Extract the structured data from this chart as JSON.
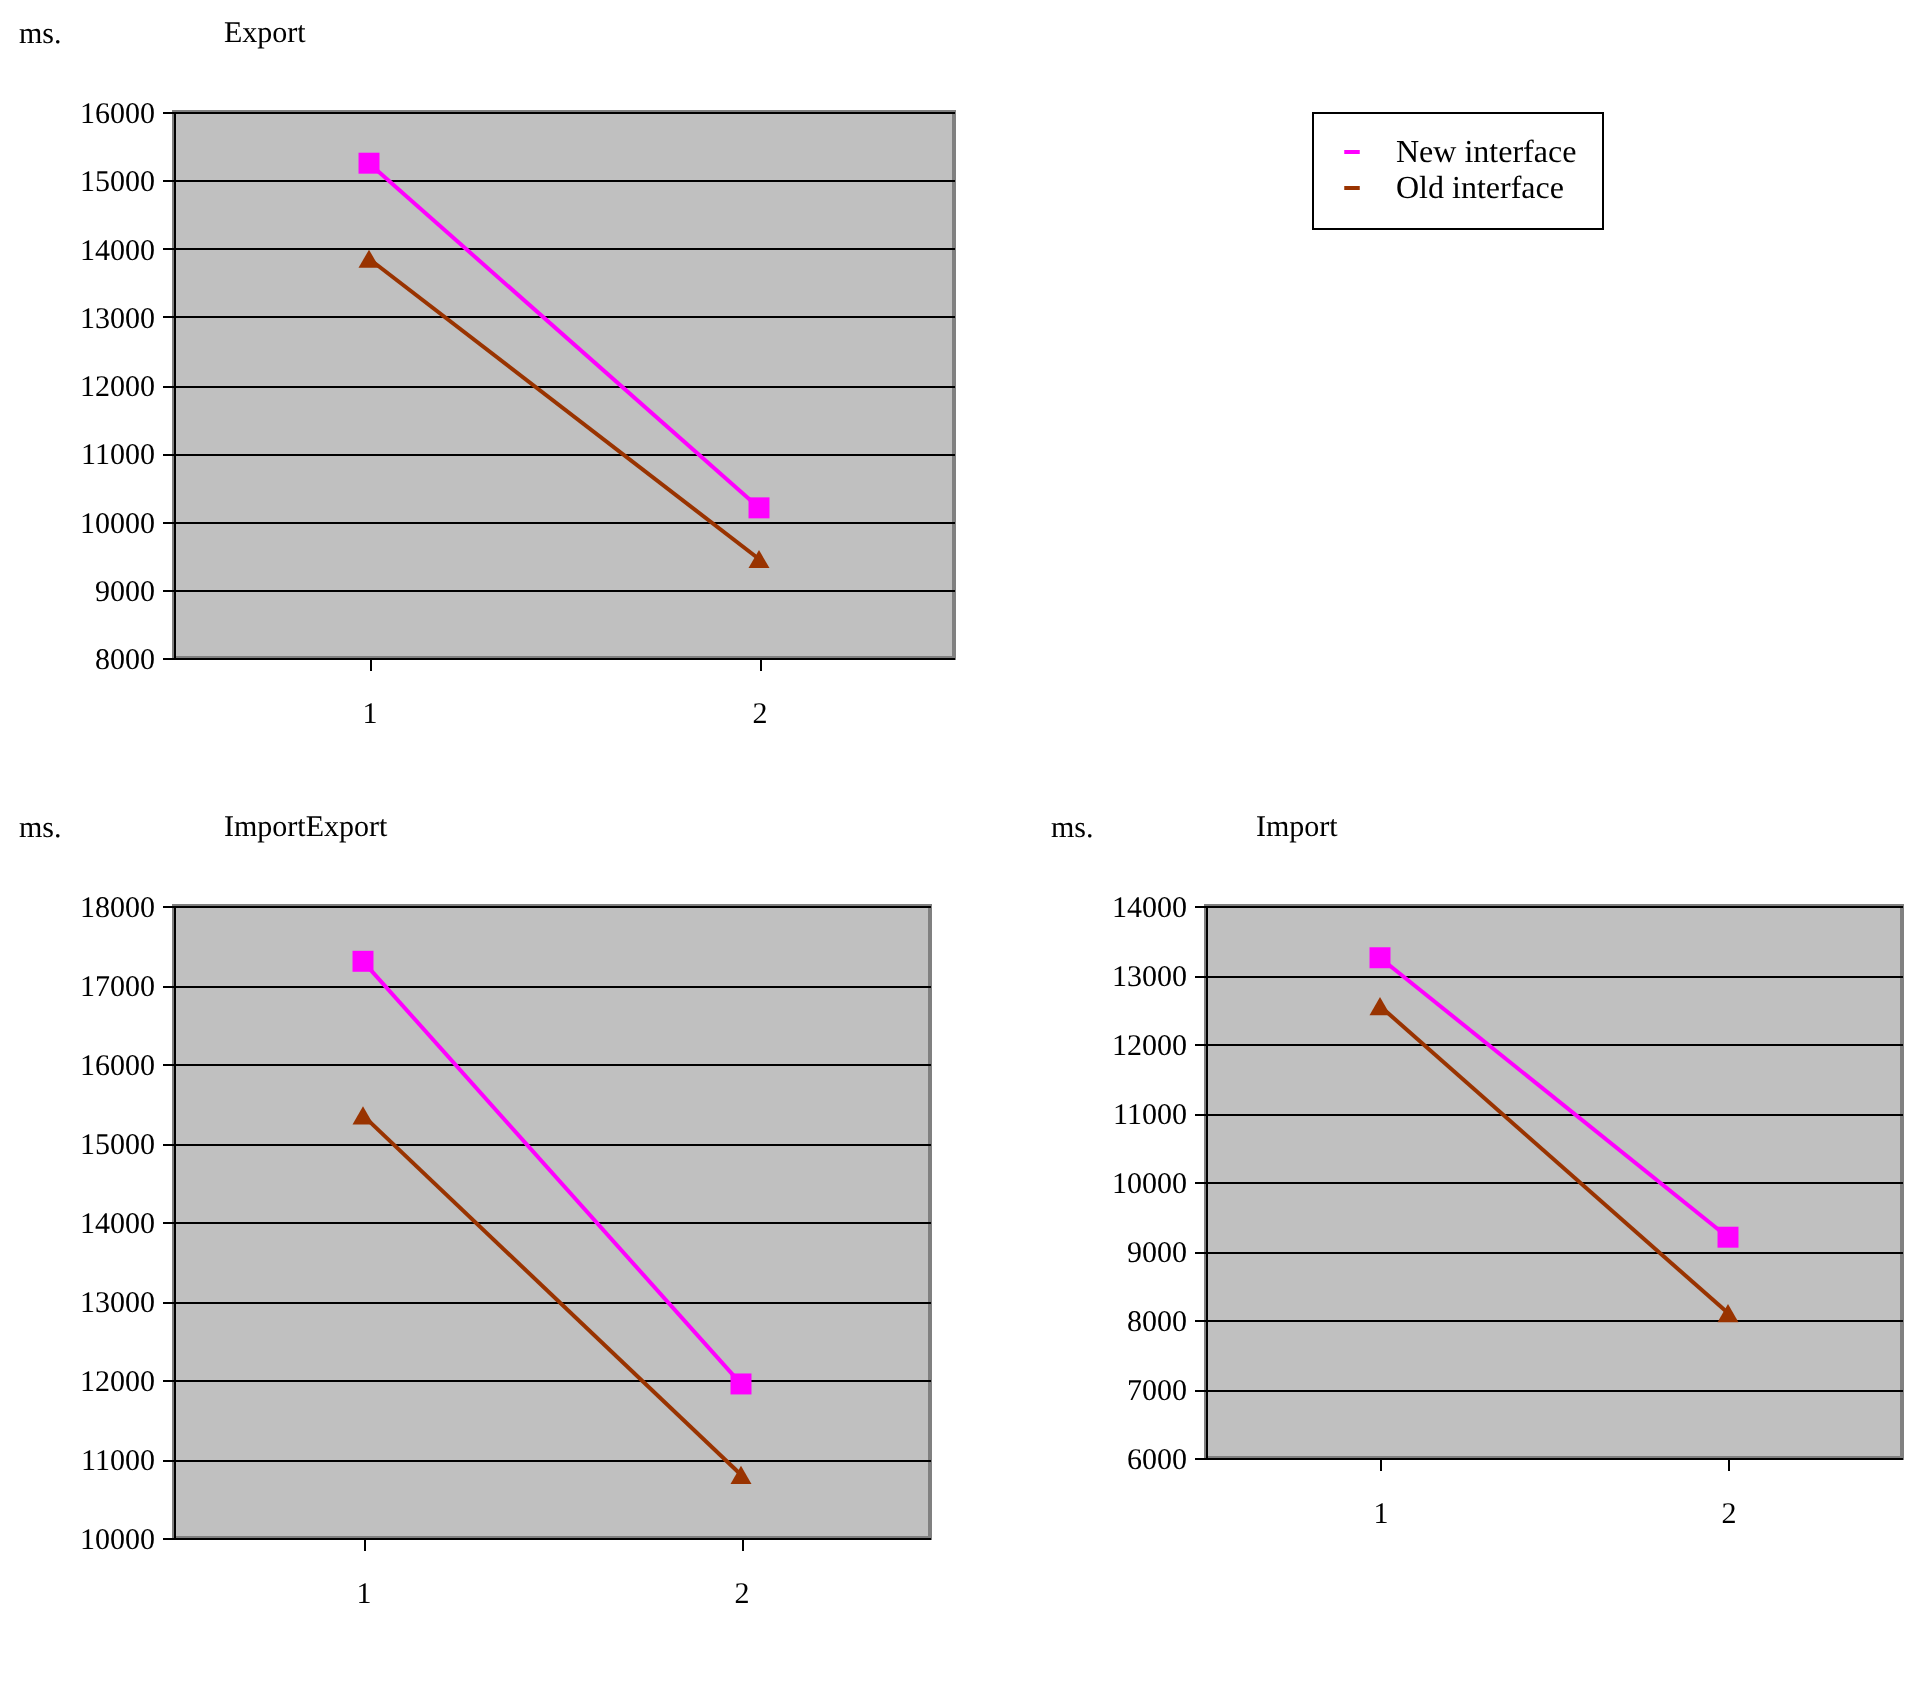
{
  "chart_data": [
    {
      "type": "line",
      "title": "Export",
      "ylabel": "ms.",
      "categories": [
        "1",
        "2"
      ],
      "ylim": [
        8000,
        16000
      ],
      "yticks": [
        8000,
        9000,
        10000,
        11000,
        12000,
        13000,
        14000,
        15000,
        16000
      ],
      "grid": "y",
      "legend": "top right",
      "series": [
        {
          "name": "New interface",
          "color": "#ff00ff",
          "marker": "square",
          "values": [
            15250,
            10200
          ]
        },
        {
          "name": "Old interface",
          "color": "#993300",
          "marker": "triangle",
          "values": [
            13850,
            9450
          ]
        }
      ]
    },
    {
      "type": "line",
      "title": "ImportExport",
      "ylabel": "ms.",
      "categories": [
        "1",
        "2"
      ],
      "ylim": [
        10000,
        18000
      ],
      "yticks": [
        10000,
        11000,
        12000,
        13000,
        14000,
        15000,
        16000,
        17000,
        18000
      ],
      "grid": "y",
      "series": [
        {
          "color": "#ff00ff",
          "marker": "square",
          "values": [
            17300,
            11950
          ]
        },
        {
          "color": "#993300",
          "marker": "triangle",
          "values": [
            15350,
            10800
          ]
        }
      ]
    },
    {
      "type": "line",
      "title": "Import",
      "ylabel": "ms.",
      "categories": [
        "1",
        "2"
      ],
      "ylim": [
        6000,
        14000
      ],
      "yticks": [
        6000,
        7000,
        8000,
        9000,
        10000,
        11000,
        12000,
        13000,
        14000
      ],
      "grid": "y",
      "series": [
        {
          "color": "#ff00ff",
          "marker": "square",
          "values": [
            13250,
            9200
          ]
        },
        {
          "color": "#993300",
          "marker": "triangle",
          "values": [
            12550,
            8100
          ]
        }
      ]
    }
  ]
}
